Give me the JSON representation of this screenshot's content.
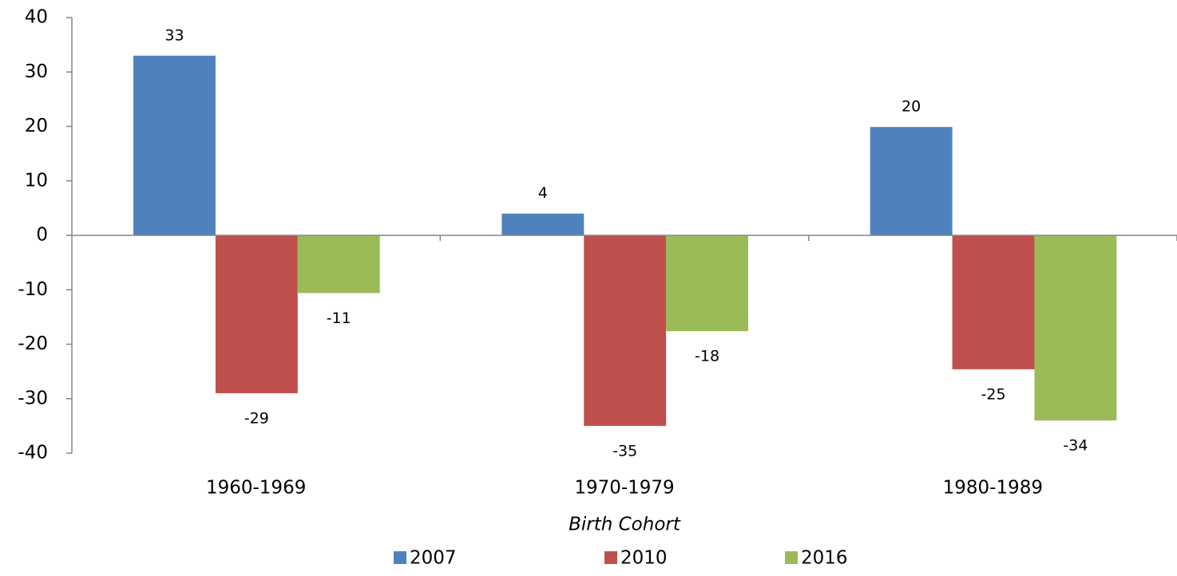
{
  "chart_data": {
    "type": "bar",
    "x_label": "Birth Cohort",
    "categories": [
      "1960-1969",
      "1970-1979",
      "1980-1989"
    ],
    "series": [
      {
        "name": "2007",
        "color": "#4f81bd",
        "values": [
          33,
          4,
          19.9
        ],
        "value_labels": [
          "33",
          "4",
          "20"
        ]
      },
      {
        "name": "2010",
        "color": "#c0504d",
        "values": [
          -29,
          -35,
          -24.6
        ],
        "value_labels": [
          "-29",
          "-35",
          "-25"
        ]
      },
      {
        "name": "2016",
        "color": "#9bbb59",
        "values": [
          -10.6,
          -17.6,
          -34
        ],
        "value_labels": [
          "-11",
          "-18",
          "-34"
        ]
      }
    ],
    "ylim": [
      -40,
      40
    ],
    "yticks": [
      -40,
      -30,
      -20,
      -10,
      0,
      10,
      20,
      30,
      40
    ],
    "legend": "bottom"
  }
}
